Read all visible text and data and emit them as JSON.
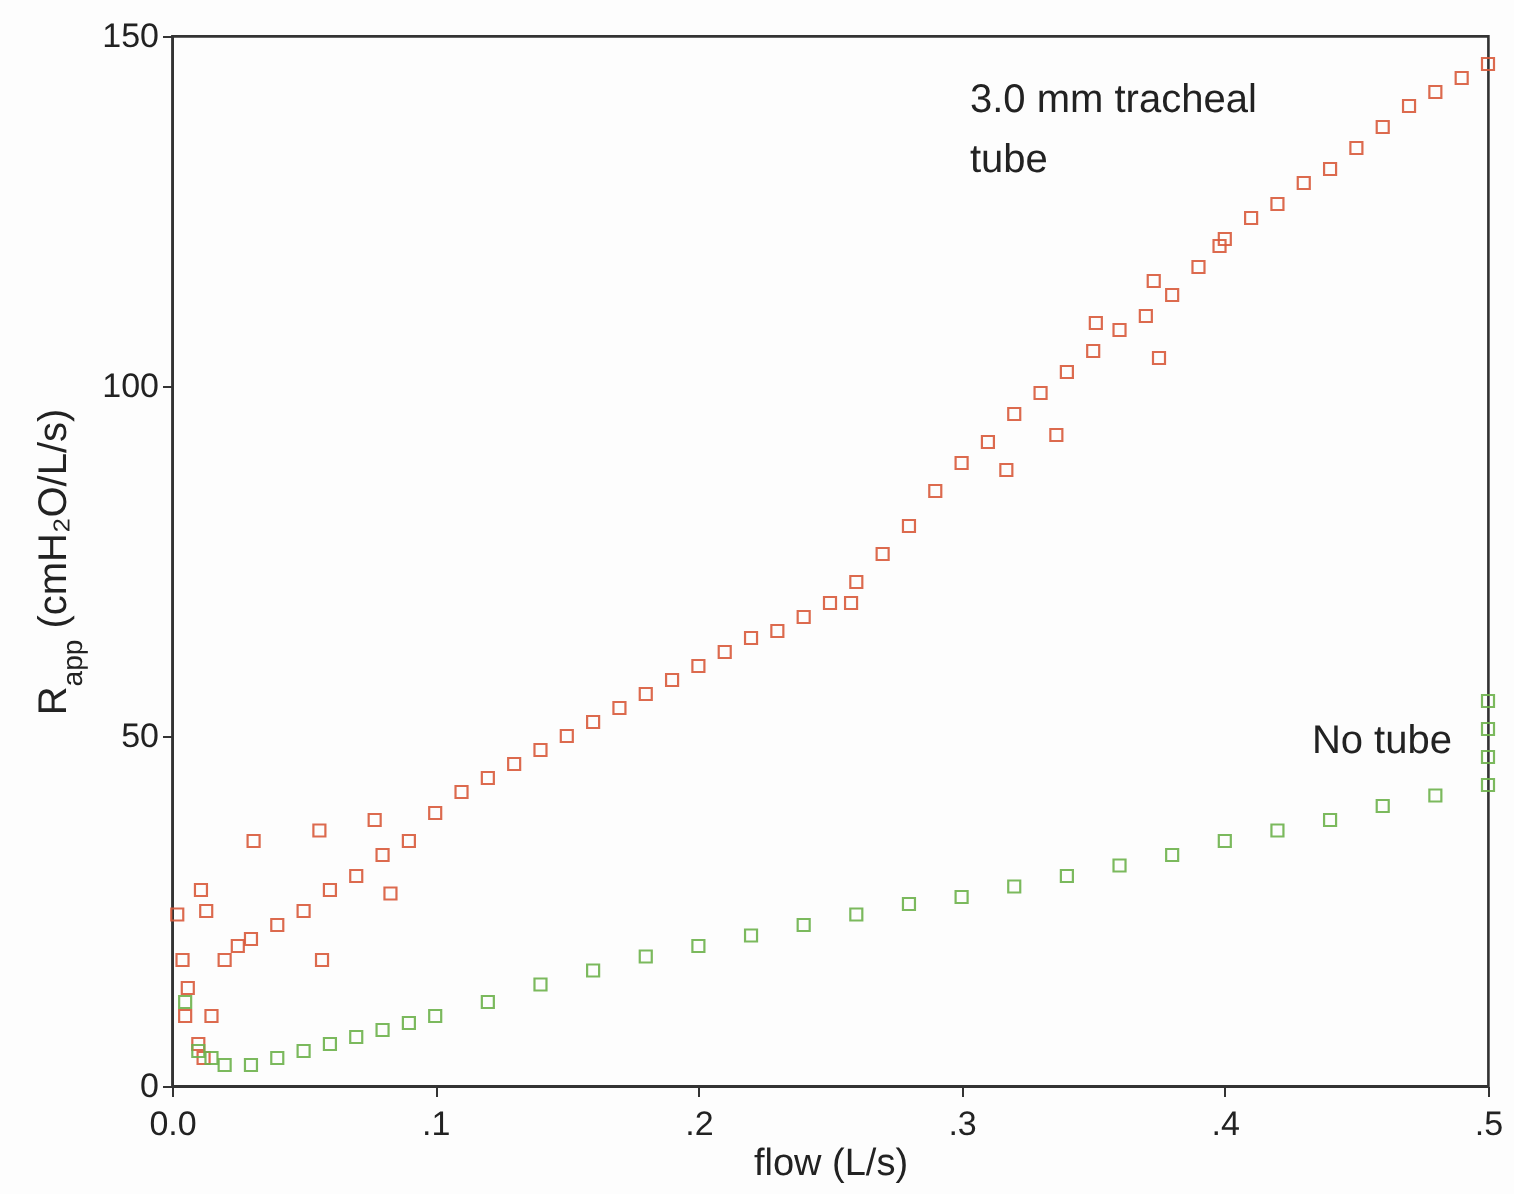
{
  "chart_data": {
    "type": "scatter",
    "xlabel": "flow (L/s)",
    "ylabel": "R$_{app}$ (cmH₂O/L/s)",
    "marker": "square",
    "grid": false,
    "legend": false,
    "xlim": [
      0,
      0.5
    ],
    "ylim": [
      0,
      150
    ],
    "xticks": [
      {
        "value": 0,
        "label": "0.0"
      },
      {
        "value": 0.1,
        "label": ".1"
      },
      {
        "value": 0.2,
        "label": ".2"
      },
      {
        "value": 0.3,
        "label": ".3"
      },
      {
        "value": 0.4,
        "label": ".4"
      },
      {
        "value": 0.5,
        "label": ".5"
      }
    ],
    "yticks": [
      0,
      50,
      100,
      150
    ],
    "series": [
      {
        "name": "3.0 mm tracheal tube",
        "color": "#d95b3c",
        "x": [
          0.002,
          0.004,
          0.005,
          0.006,
          0.01,
          0.011,
          0.012,
          0.013,
          0.015,
          0.02,
          0.025,
          0.03,
          0.031,
          0.04,
          0.05,
          0.056,
          0.057,
          0.06,
          0.07,
          0.077,
          0.08,
          0.083,
          0.09,
          0.1,
          0.11,
          0.12,
          0.13,
          0.14,
          0.15,
          0.16,
          0.17,
          0.18,
          0.19,
          0.2,
          0.21,
          0.22,
          0.23,
          0.24,
          0.25,
          0.258,
          0.26,
          0.27,
          0.28,
          0.29,
          0.3,
          0.31,
          0.317,
          0.32,
          0.33,
          0.336,
          0.34,
          0.35,
          0.351,
          0.36,
          0.37,
          0.373,
          0.375,
          0.38,
          0.39,
          0.398,
          0.4,
          0.41,
          0.42,
          0.43,
          0.44,
          0.45,
          0.46,
          0.47,
          0.48,
          0.49,
          0.5
        ],
        "values": [
          24.5,
          18,
          10,
          14,
          6,
          28,
          4,
          25,
          10,
          18,
          20,
          21,
          35,
          23,
          25,
          36.5,
          18,
          28,
          30,
          38,
          33,
          27.5,
          35,
          39,
          42,
          44,
          46,
          48,
          50,
          52,
          54,
          56,
          58,
          60,
          62,
          64,
          65,
          67,
          69,
          69,
          72,
          76,
          80,
          85,
          89,
          92,
          88,
          96,
          99,
          93,
          102,
          105,
          109,
          108,
          110,
          115,
          104,
          113,
          117,
          120,
          121,
          124,
          126,
          129,
          131,
          134,
          137,
          140,
          142,
          144,
          146
        ]
      },
      {
        "name": "No tube",
        "color": "#6db24c",
        "x": [
          0.005,
          0.01,
          0.015,
          0.02,
          0.03,
          0.04,
          0.05,
          0.06,
          0.07,
          0.08,
          0.09,
          0.1,
          0.12,
          0.14,
          0.16,
          0.18,
          0.2,
          0.22,
          0.24,
          0.26,
          0.28,
          0.3,
          0.32,
          0.34,
          0.36,
          0.38,
          0.4,
          0.42,
          0.44,
          0.46,
          0.48,
          0.5,
          0.5,
          0.5,
          0.5
        ],
        "values": [
          12,
          5,
          4,
          3,
          3,
          4,
          5,
          6,
          7,
          8,
          9,
          10,
          12,
          14.5,
          16.5,
          18.5,
          20,
          21.5,
          23,
          24.5,
          26,
          27,
          28.5,
          30,
          31.5,
          33,
          35,
          36.5,
          38,
          40,
          41.5,
          43,
          47,
          51,
          55
        ]
      }
    ]
  }
}
